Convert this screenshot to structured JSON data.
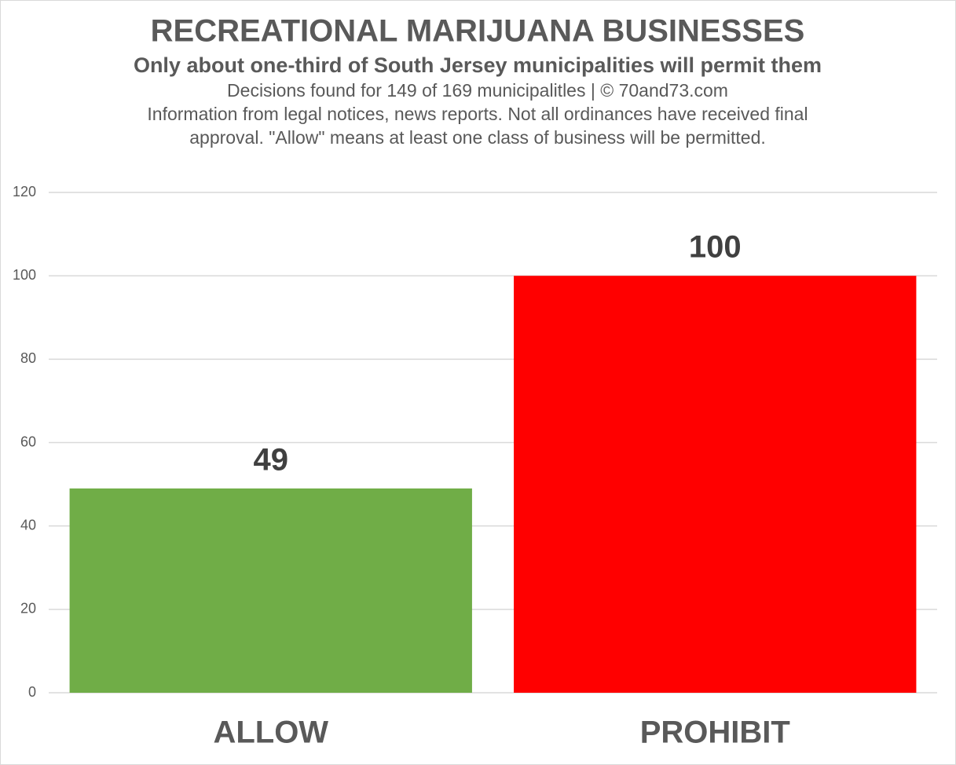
{
  "chart_data": {
    "type": "bar",
    "title": "RECREATIONAL MARIJUANA BUSINESSES",
    "subtitle": "Only about one-third of South Jersey municipalities will permit them",
    "notes": [
      "Decisions found for 149 of 169 municipalitles | © 70and73.com",
      "Information from legal notices, news reports. Not all ordinances have received final",
      "approval. \"Allow\" means at least one class of business will be permitted."
    ],
    "categories": [
      "ALLOW",
      "PROHIBIT"
    ],
    "values": [
      49,
      100
    ],
    "colors": [
      "#70ad47",
      "#ff0000"
    ],
    "ylim": [
      0,
      120
    ],
    "yticks": [
      0,
      20,
      40,
      60,
      80,
      100,
      120
    ],
    "grid": true
  }
}
